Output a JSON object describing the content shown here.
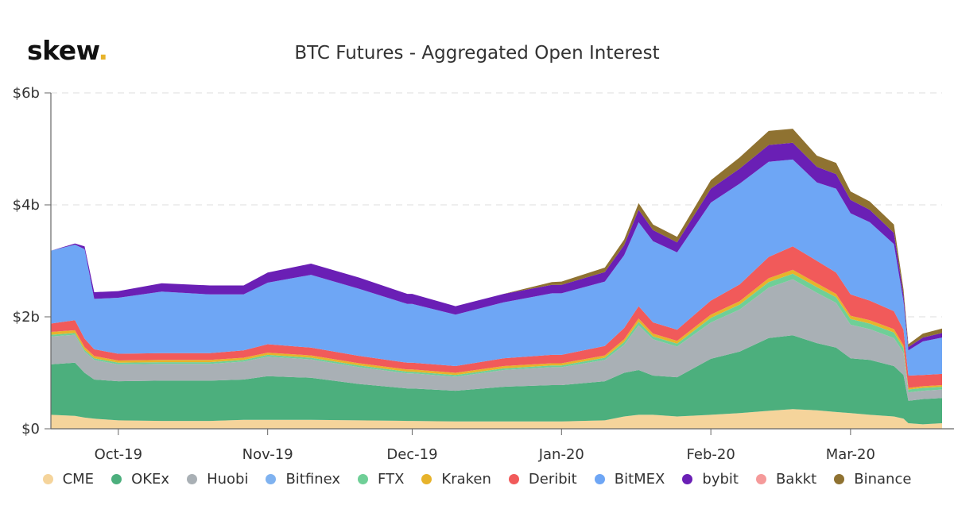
{
  "brand": {
    "name": "skew",
    "dot": "."
  },
  "chart_data": {
    "type": "area",
    "stacked": true,
    "title": "BTC Futures - Aggregated Open Interest",
    "xlabel": "",
    "ylabel": "",
    "ylim": [
      0,
      6
    ],
    "y_ticks": [
      {
        "value": 0,
        "label": "$0"
      },
      {
        "value": 2,
        "label": "$2b"
      },
      {
        "value": 4,
        "label": "$4b"
      },
      {
        "value": 6,
        "label": "$6b"
      }
    ],
    "x_ticks": [
      {
        "value": "2019-10-01",
        "label": "Oct-19"
      },
      {
        "value": "2019-11-01",
        "label": "Nov-19"
      },
      {
        "value": "2019-12-01",
        "label": "Dec-19"
      },
      {
        "value": "2020-01-01",
        "label": "Jan-20"
      },
      {
        "value": "2020-02-01",
        "label": "Feb-20"
      },
      {
        "value": "2020-03-01",
        "label": "Mar-20"
      }
    ],
    "xlim": [
      "2019-09-17",
      "2020-03-20"
    ],
    "grid": "horizontal dashed",
    "legend_position": "bottom",
    "x": [
      "2019-09-17",
      "2019-09-22",
      "2019-09-24",
      "2019-09-26",
      "2019-10-01",
      "2019-10-10",
      "2019-10-20",
      "2019-10-27",
      "2019-11-01",
      "2019-11-10",
      "2019-11-20",
      "2019-11-30",
      "2019-12-01",
      "2019-12-10",
      "2019-12-20",
      "2019-12-30",
      "2020-01-01",
      "2020-01-10",
      "2020-01-14",
      "2020-01-17",
      "2020-01-20",
      "2020-01-25",
      "2020-02-01",
      "2020-02-07",
      "2020-02-13",
      "2020-02-18",
      "2020-02-23",
      "2020-02-27",
      "2020-03-01",
      "2020-03-05",
      "2020-03-10",
      "2020-03-12",
      "2020-03-13",
      "2020-03-16",
      "2020-03-20"
    ],
    "series": [
      {
        "name": "CME",
        "color": "#f5d49b",
        "values": [
          0.25,
          0.23,
          0.2,
          0.18,
          0.15,
          0.14,
          0.14,
          0.16,
          0.16,
          0.16,
          0.15,
          0.14,
          0.14,
          0.13,
          0.13,
          0.13,
          0.13,
          0.15,
          0.22,
          0.25,
          0.25,
          0.22,
          0.25,
          0.28,
          0.32,
          0.35,
          0.33,
          0.3,
          0.28,
          0.25,
          0.22,
          0.18,
          0.1,
          0.08,
          0.1
        ]
      },
      {
        "name": "OKEx",
        "color": "#4caf7d",
        "values": [
          0.9,
          0.95,
          0.8,
          0.7,
          0.7,
          0.72,
          0.72,
          0.72,
          0.78,
          0.75,
          0.65,
          0.58,
          0.58,
          0.55,
          0.62,
          0.65,
          0.65,
          0.7,
          0.78,
          0.8,
          0.7,
          0.7,
          1.0,
          1.1,
          1.3,
          1.32,
          1.2,
          1.15,
          0.98,
          0.98,
          0.9,
          0.78,
          0.4,
          0.45,
          0.45
        ]
      },
      {
        "name": "Huobi",
        "color": "#a9b0b5",
        "values": [
          0.5,
          0.5,
          0.38,
          0.35,
          0.3,
          0.3,
          0.3,
          0.32,
          0.35,
          0.33,
          0.3,
          0.27,
          0.27,
          0.25,
          0.3,
          0.32,
          0.32,
          0.38,
          0.5,
          0.8,
          0.65,
          0.55,
          0.65,
          0.75,
          0.9,
          1.0,
          0.9,
          0.8,
          0.6,
          0.55,
          0.5,
          0.4,
          0.15,
          0.15,
          0.15
        ]
      },
      {
        "name": "Bitfinex",
        "color": "#7fb2f0",
        "values": [
          0,
          0,
          0,
          0,
          0,
          0,
          0,
          0,
          0,
          0,
          0,
          0,
          0,
          0,
          0,
          0,
          0,
          0,
          0,
          0,
          0,
          0,
          0,
          0,
          0,
          0,
          0,
          0,
          0,
          0,
          0,
          0,
          0,
          0,
          0
        ]
      },
      {
        "name": "FTX",
        "color": "#6fcf97",
        "values": [
          0.03,
          0.03,
          0.03,
          0.03,
          0.03,
          0.03,
          0.03,
          0.03,
          0.03,
          0.03,
          0.03,
          0.03,
          0.03,
          0.03,
          0.03,
          0.03,
          0.03,
          0.04,
          0.05,
          0.06,
          0.05,
          0.05,
          0.08,
          0.09,
          0.1,
          0.1,
          0.1,
          0.1,
          0.1,
          0.1,
          0.1,
          0.08,
          0.05,
          0.05,
          0.05
        ]
      },
      {
        "name": "Kraken",
        "color": "#e7b32b",
        "values": [
          0.05,
          0.05,
          0.05,
          0.04,
          0.04,
          0.04,
          0.04,
          0.04,
          0.04,
          0.04,
          0.04,
          0.04,
          0.04,
          0.04,
          0.04,
          0.04,
          0.04,
          0.04,
          0.05,
          0.06,
          0.05,
          0.05,
          0.06,
          0.06,
          0.07,
          0.07,
          0.07,
          0.06,
          0.06,
          0.06,
          0.06,
          0.05,
          0.03,
          0.03,
          0.03
        ]
      },
      {
        "name": "Deribit",
        "color": "#f15a5a",
        "values": [
          0.15,
          0.18,
          0.15,
          0.12,
          0.12,
          0.12,
          0.12,
          0.13,
          0.15,
          0.14,
          0.13,
          0.12,
          0.12,
          0.12,
          0.14,
          0.15,
          0.15,
          0.17,
          0.2,
          0.22,
          0.2,
          0.2,
          0.25,
          0.3,
          0.38,
          0.42,
          0.4,
          0.38,
          0.38,
          0.35,
          0.32,
          0.28,
          0.22,
          0.2,
          0.2
        ]
      },
      {
        "name": "BitMEX",
        "color": "#6ea6f5",
        "values": [
          1.3,
          1.35,
          1.6,
          0.9,
          1.0,
          1.1,
          1.05,
          1.0,
          1.1,
          1.3,
          1.2,
          1.05,
          1.05,
          0.92,
          1.0,
          1.1,
          1.1,
          1.15,
          1.3,
          1.5,
          1.45,
          1.38,
          1.75,
          1.8,
          1.7,
          1.55,
          1.4,
          1.5,
          1.45,
          1.4,
          1.2,
          0.5,
          0.45,
          0.6,
          0.65
        ]
      },
      {
        "name": "bybit",
        "color": "#6a1fb5",
        "values": [
          0.0,
          0.02,
          0.05,
          0.12,
          0.12,
          0.15,
          0.16,
          0.16,
          0.18,
          0.2,
          0.2,
          0.18,
          0.18,
          0.15,
          0.15,
          0.15,
          0.15,
          0.17,
          0.18,
          0.22,
          0.2,
          0.18,
          0.25,
          0.27,
          0.3,
          0.3,
          0.28,
          0.26,
          0.24,
          0.22,
          0.2,
          0.12,
          0.06,
          0.07,
          0.08
        ]
      },
      {
        "name": "Bakkt",
        "color": "#f59a9a",
        "values": [
          0,
          0,
          0,
          0,
          0,
          0,
          0,
          0,
          0,
          0,
          0,
          0,
          0,
          0,
          0,
          0,
          0,
          0,
          0,
          0,
          0,
          0,
          0,
          0,
          0,
          0,
          0,
          0,
          0,
          0,
          0,
          0,
          0,
          0,
          0
        ]
      },
      {
        "name": "Binance",
        "color": "#8f7231",
        "values": [
          0,
          0,
          0,
          0,
          0,
          0,
          0,
          0,
          0,
          0,
          0,
          0,
          0,
          0,
          0,
          0.05,
          0.06,
          0.08,
          0.1,
          0.12,
          0.1,
          0.1,
          0.15,
          0.2,
          0.25,
          0.25,
          0.2,
          0.2,
          0.15,
          0.15,
          0.15,
          0.1,
          0.05,
          0.07,
          0.08
        ]
      }
    ]
  }
}
